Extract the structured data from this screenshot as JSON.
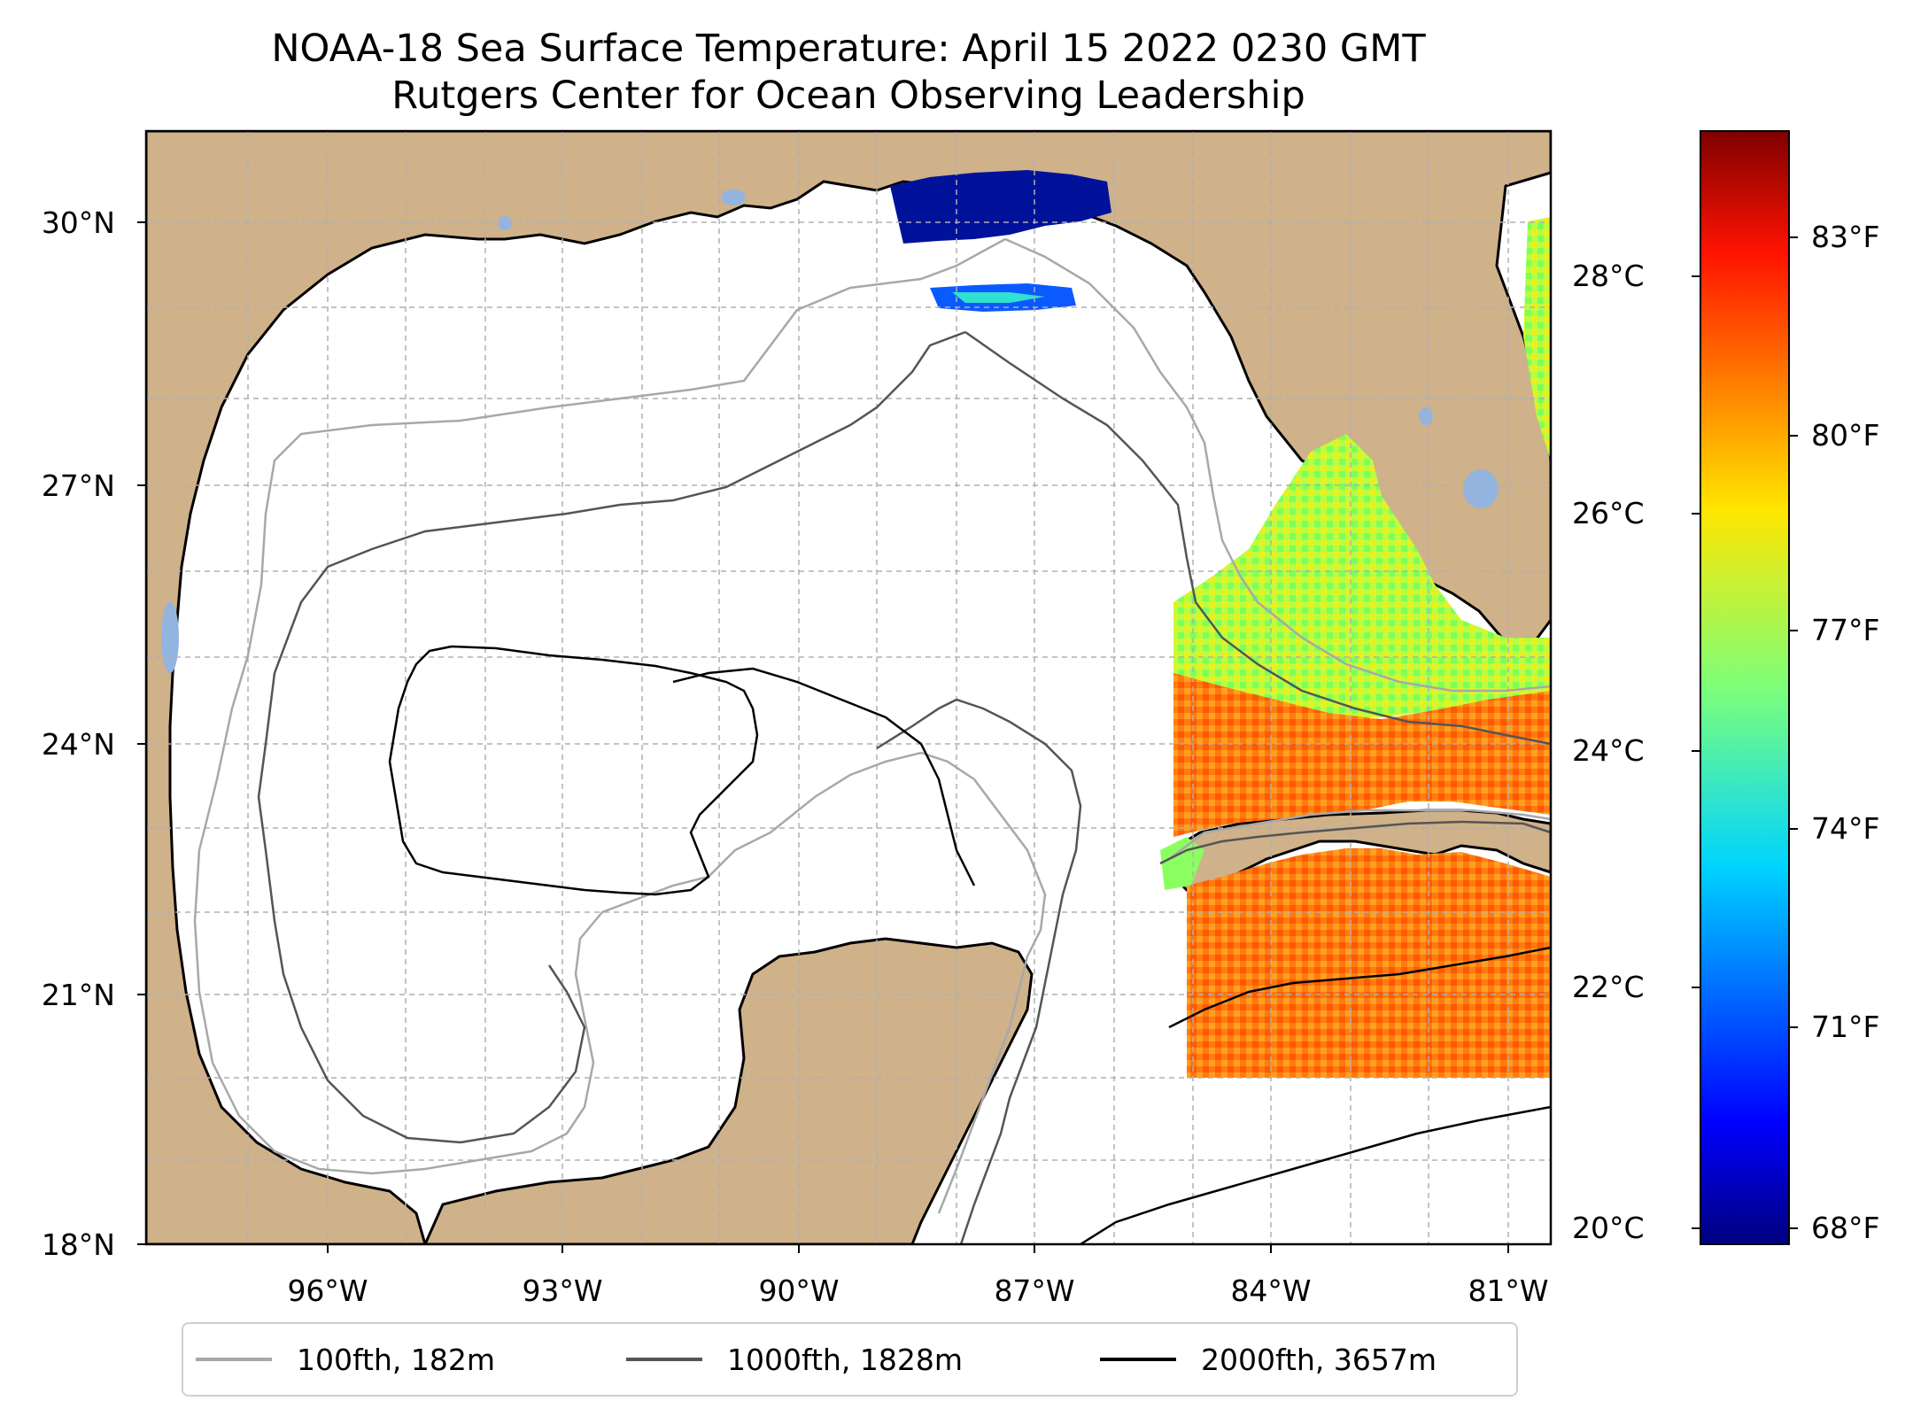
{
  "title": {
    "line1": "NOAA-18 Sea Surface Temperature: April 15 2022 0230 GMT",
    "line2": "Rutgers Center for Ocean Observing Leadership"
  },
  "map": {
    "region": "Gulf of Mexico",
    "lat_range": [
      18,
      31
    ],
    "lon_range": [
      -98.3,
      -80.4
    ],
    "lat_ticks": [
      "30°N",
      "27°N",
      "24°N",
      "21°N",
      "18°N"
    ],
    "lon_ticks": [
      "96°W",
      "93°W",
      "90°W",
      "87°W",
      "84°W",
      "81°W"
    ],
    "land_color": "#cfb18a",
    "lake_color": "#94b4e0",
    "ocean_color": "#ffffff",
    "grid": true
  },
  "colorbar": {
    "colormap": "jet",
    "celsius_ticks": [
      "20°C",
      "22°C",
      "24°C",
      "26°C",
      "28°C"
    ],
    "fahrenheit_ticks": [
      "68°F",
      "71°F",
      "74°F",
      "77°F",
      "80°F",
      "83°F"
    ],
    "range_celsius": [
      19.8,
      29.0
    ]
  },
  "legend": [
    {
      "label": "100fth, 182m",
      "color": "#a8a8a8"
    },
    {
      "label": "1000fth, 1828m",
      "color": "#555555"
    },
    {
      "label": "2000fth, 3657m",
      "color": "#000000"
    }
  ]
}
